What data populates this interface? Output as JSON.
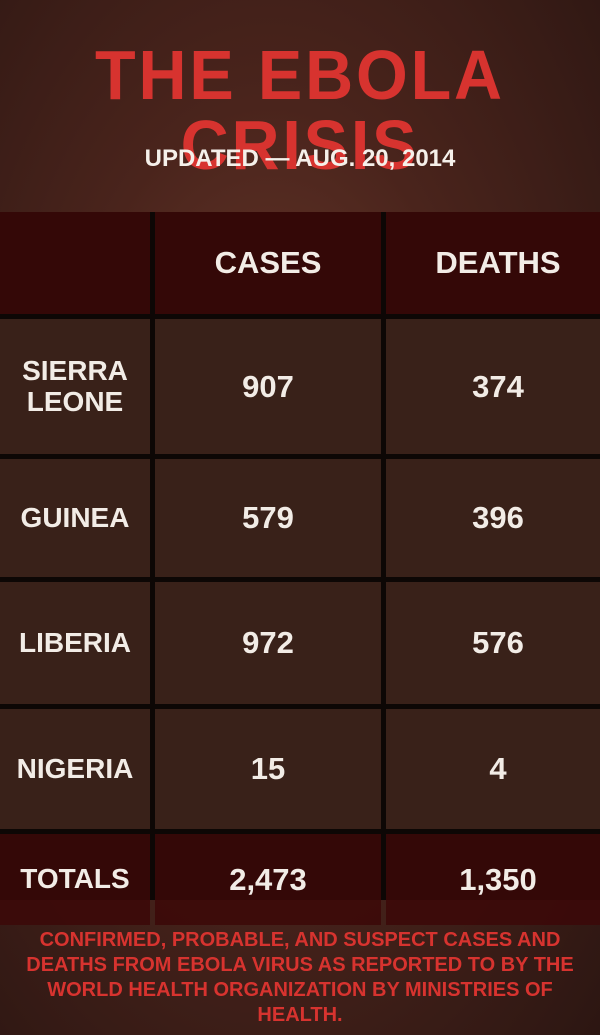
{
  "header": {
    "title": "THE EBOLA CRISIS",
    "subtitle": "UPDATED — AUG. 20, 2014"
  },
  "table": {
    "columns": [
      "CASES",
      "DEATHS"
    ],
    "rows": [
      [
        "SIERRA LEONE",
        "907",
        "374"
      ],
      [
        "GUINEA",
        "579",
        "396"
      ],
      [
        "LIBERIA",
        "972",
        "576"
      ],
      [
        "NIGERIA",
        "15",
        "4"
      ]
    ],
    "totals": [
      "TOTALS",
      "2,473",
      "1,350"
    ]
  },
  "footer": {
    "note": "CONFIRMED, PROBABLE, AND SUSPECT CASES AND DEATHS FROM EBOLA VIRUS AS REPORTED TO BY THE WORLD HEALTH ORGANIZATION BY MINISTRIES OF HEALTH."
  }
}
